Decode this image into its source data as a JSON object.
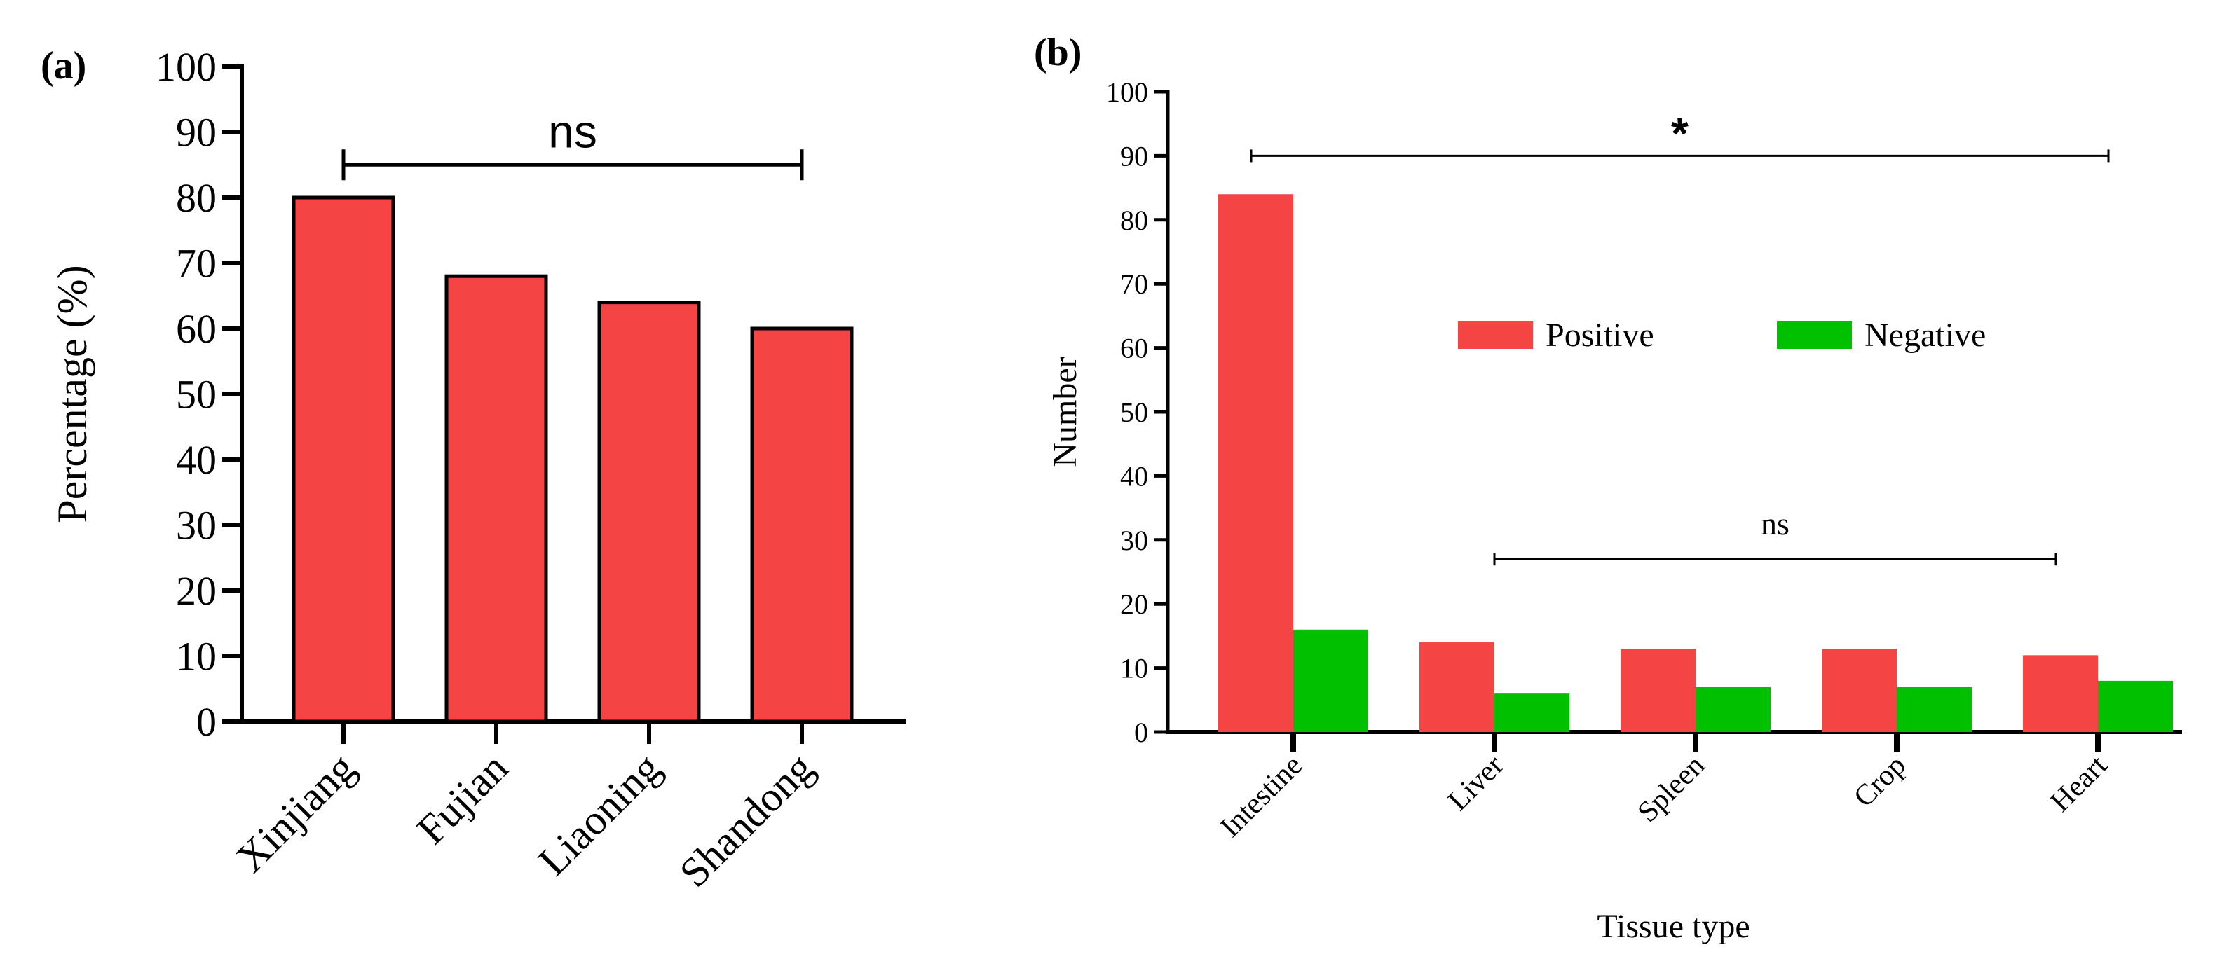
{
  "chart_data": [
    {
      "panel_label": "(a)",
      "type": "bar",
      "categories": [
        "Xinjiang",
        "Fujian",
        "Liaoning",
        "Shandong"
      ],
      "values": [
        80,
        68,
        64,
        60
      ],
      "ylabel": "Percentage (%)",
      "xlabel": "",
      "ylim": [
        0,
        100
      ],
      "yticks": [
        0,
        10,
        20,
        30,
        40,
        50,
        60,
        70,
        80,
        90,
        100
      ],
      "bar_color": "#f44444",
      "annotations": [
        {
          "text": "ns",
          "from": "Xinjiang",
          "to": "Shandong",
          "level": 85
        }
      ]
    },
    {
      "panel_label": "(b)",
      "type": "bar",
      "categories": [
        "Intestine",
        "Liver",
        "Spleen",
        "Crop",
        "Heart"
      ],
      "series": [
        {
          "name": "Positive",
          "values": [
            84,
            14,
            13,
            13,
            12
          ],
          "color": "#f44444"
        },
        {
          "name": "Negative",
          "values": [
            16,
            6,
            7,
            7,
            8
          ],
          "color": "#00c000"
        }
      ],
      "xlabel": "Tissue type",
      "ylabel": "Number",
      "ylim": [
        0,
        100
      ],
      "yticks": [
        0,
        10,
        20,
        30,
        40,
        50,
        60,
        70,
        80,
        90,
        100
      ],
      "legend_position": "center",
      "annotations": [
        {
          "text": "*",
          "from": "Intestine",
          "to": "Heart",
          "level": 90
        },
        {
          "text": "ns",
          "from": "Liver",
          "to": "Heart",
          "level": 27
        }
      ]
    }
  ]
}
